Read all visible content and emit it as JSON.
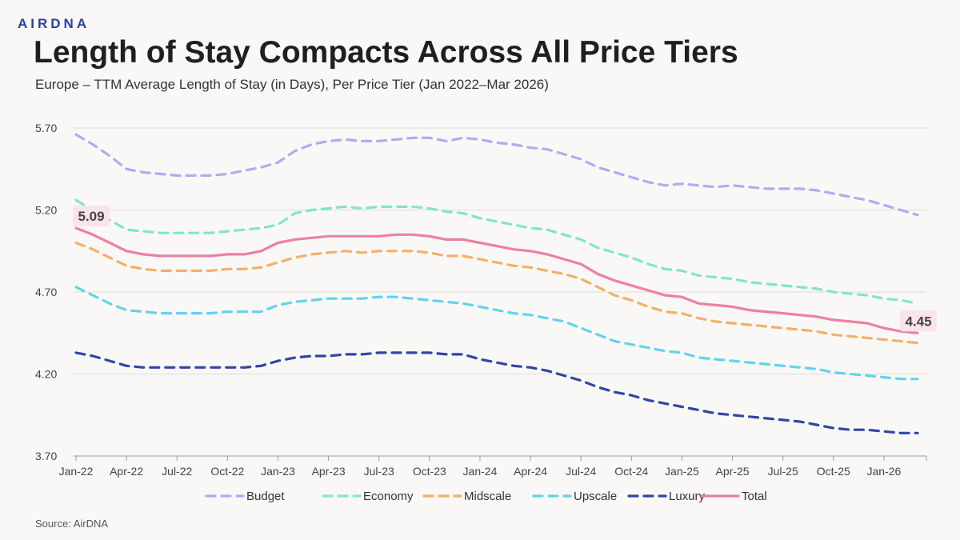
{
  "brand": "AIRDNA",
  "title": "Length of Stay Compacts Across All Price Tiers",
  "subtitle": "Europe – TTM Average Length of Stay (in Days), Per Price Tier (Jan 2022–Mar 2026)",
  "source": "Source: AirDNA",
  "colors": {
    "Budget": "#b4a9f2",
    "Economy": "#7fe7c4",
    "Midscale": "#f5ae6a",
    "Upscale": "#5fd3f0",
    "Luxury": "#2f46a8",
    "Total": "#ee7fa3",
    "callout_bg": "#fbe3ea"
  },
  "chart_data": {
    "type": "line",
    "x": [
      "Jan-22",
      "Feb-22",
      "Mar-22",
      "Apr-22",
      "May-22",
      "Jun-22",
      "Jul-22",
      "Aug-22",
      "Sep-22",
      "Oct-22",
      "Nov-22",
      "Dec-22",
      "Jan-23",
      "Feb-23",
      "Mar-23",
      "Apr-23",
      "May-23",
      "Jun-23",
      "Jul-23",
      "Aug-23",
      "Sep-23",
      "Oct-23",
      "Nov-23",
      "Dec-23",
      "Jan-24",
      "Feb-24",
      "Mar-24",
      "Apr-24",
      "May-24",
      "Jun-24",
      "Jul-24",
      "Aug-24",
      "Sep-24",
      "Oct-24",
      "Nov-24",
      "Dec-24",
      "Jan-25",
      "Feb-25",
      "Mar-25",
      "Apr-25",
      "May-25",
      "Jun-25",
      "Jul-25",
      "Aug-25",
      "Sep-25",
      "Oct-25",
      "Nov-25",
      "Dec-25",
      "Jan-26",
      "Feb-26",
      "Mar-26"
    ],
    "xticks": [
      "Jan-22",
      "Apr-22",
      "Jul-22",
      "Oct-22",
      "Jan-23",
      "Apr-23",
      "Jul-23",
      "Oct-23",
      "Jan-24",
      "Apr-24",
      "Jul-24",
      "Oct-24",
      "Jan-25",
      "Apr-25",
      "Jul-25",
      "Oct-25",
      "Jan-26"
    ],
    "yticks": [
      "5.70",
      "5.20",
      "4.70",
      "4.20",
      "3.70"
    ],
    "ylim": [
      3.7,
      5.7
    ],
    "grid": true,
    "legend": "bottom",
    "series": [
      {
        "name": "Budget",
        "dash": true,
        "values": [
          5.66,
          5.6,
          5.53,
          5.45,
          5.43,
          5.42,
          5.41,
          5.41,
          5.41,
          5.42,
          5.44,
          5.46,
          5.49,
          5.56,
          5.6,
          5.62,
          5.63,
          5.62,
          5.62,
          5.63,
          5.64,
          5.64,
          5.62,
          5.64,
          5.63,
          5.61,
          5.6,
          5.58,
          5.57,
          5.54,
          5.51,
          5.46,
          5.43,
          5.4,
          5.37,
          5.35,
          5.36,
          5.35,
          5.34,
          5.35,
          5.34,
          5.33,
          5.33,
          5.33,
          5.32,
          5.3,
          5.28,
          5.26,
          5.23,
          5.2,
          5.17
        ]
      },
      {
        "name": "Economy",
        "dash": true,
        "values": [
          5.26,
          5.2,
          5.14,
          5.08,
          5.07,
          5.06,
          5.06,
          5.06,
          5.06,
          5.07,
          5.08,
          5.09,
          5.11,
          5.18,
          5.2,
          5.21,
          5.22,
          5.21,
          5.22,
          5.22,
          5.22,
          5.21,
          5.19,
          5.18,
          5.15,
          5.13,
          5.11,
          5.09,
          5.08,
          5.05,
          5.02,
          4.97,
          4.94,
          4.91,
          4.87,
          4.84,
          4.83,
          4.8,
          4.79,
          4.78,
          4.76,
          4.75,
          4.74,
          4.73,
          4.72,
          4.7,
          4.69,
          4.68,
          4.66,
          4.65,
          4.63
        ]
      },
      {
        "name": "Midscale",
        "dash": true,
        "values": [
          5.0,
          4.96,
          4.91,
          4.86,
          4.84,
          4.83,
          4.83,
          4.83,
          4.83,
          4.84,
          4.84,
          4.85,
          4.88,
          4.91,
          4.93,
          4.94,
          4.95,
          4.94,
          4.95,
          4.95,
          4.95,
          4.94,
          4.92,
          4.92,
          4.9,
          4.88,
          4.86,
          4.85,
          4.83,
          4.81,
          4.78,
          4.73,
          4.68,
          4.65,
          4.61,
          4.58,
          4.57,
          4.54,
          4.52,
          4.51,
          4.5,
          4.49,
          4.48,
          4.47,
          4.46,
          4.44,
          4.43,
          4.42,
          4.41,
          4.4,
          4.39
        ]
      },
      {
        "name": "Upscale",
        "dash": true,
        "values": [
          4.73,
          4.68,
          4.63,
          4.59,
          4.58,
          4.57,
          4.57,
          4.57,
          4.57,
          4.58,
          4.58,
          4.58,
          4.62,
          4.64,
          4.65,
          4.66,
          4.66,
          4.66,
          4.67,
          4.67,
          4.66,
          4.65,
          4.64,
          4.63,
          4.61,
          4.59,
          4.57,
          4.56,
          4.54,
          4.52,
          4.48,
          4.44,
          4.4,
          4.38,
          4.36,
          4.34,
          4.33,
          4.3,
          4.29,
          4.28,
          4.27,
          4.26,
          4.25,
          4.24,
          4.23,
          4.21,
          4.2,
          4.19,
          4.18,
          4.17,
          4.17
        ]
      },
      {
        "name": "Luxury",
        "dash": true,
        "values": [
          4.33,
          4.31,
          4.28,
          4.25,
          4.24,
          4.24,
          4.24,
          4.24,
          4.24,
          4.24,
          4.24,
          4.25,
          4.28,
          4.3,
          4.31,
          4.31,
          4.32,
          4.32,
          4.33,
          4.33,
          4.33,
          4.33,
          4.32,
          4.32,
          4.29,
          4.27,
          4.25,
          4.24,
          4.22,
          4.19,
          4.16,
          4.12,
          4.09,
          4.07,
          4.04,
          4.02,
          4.0,
          3.98,
          3.96,
          3.95,
          3.94,
          3.93,
          3.92,
          3.91,
          3.89,
          3.87,
          3.86,
          3.86,
          3.85,
          3.84,
          3.84
        ]
      },
      {
        "name": "Total",
        "dash": false,
        "values": [
          5.09,
          5.05,
          5.0,
          4.95,
          4.93,
          4.92,
          4.92,
          4.92,
          4.92,
          4.93,
          4.93,
          4.95,
          5.0,
          5.02,
          5.03,
          5.04,
          5.04,
          5.04,
          5.04,
          5.05,
          5.05,
          5.04,
          5.02,
          5.02,
          5.0,
          4.98,
          4.96,
          4.95,
          4.93,
          4.9,
          4.87,
          4.81,
          4.77,
          4.74,
          4.71,
          4.68,
          4.67,
          4.63,
          4.62,
          4.61,
          4.59,
          4.58,
          4.57,
          4.56,
          4.55,
          4.53,
          4.52,
          4.51,
          4.48,
          4.46,
          4.45
        ]
      }
    ],
    "annotations": [
      {
        "text": "5.09",
        "series": "Total",
        "index": 0
      },
      {
        "text": "4.45",
        "series": "Total",
        "index": 50
      }
    ]
  }
}
